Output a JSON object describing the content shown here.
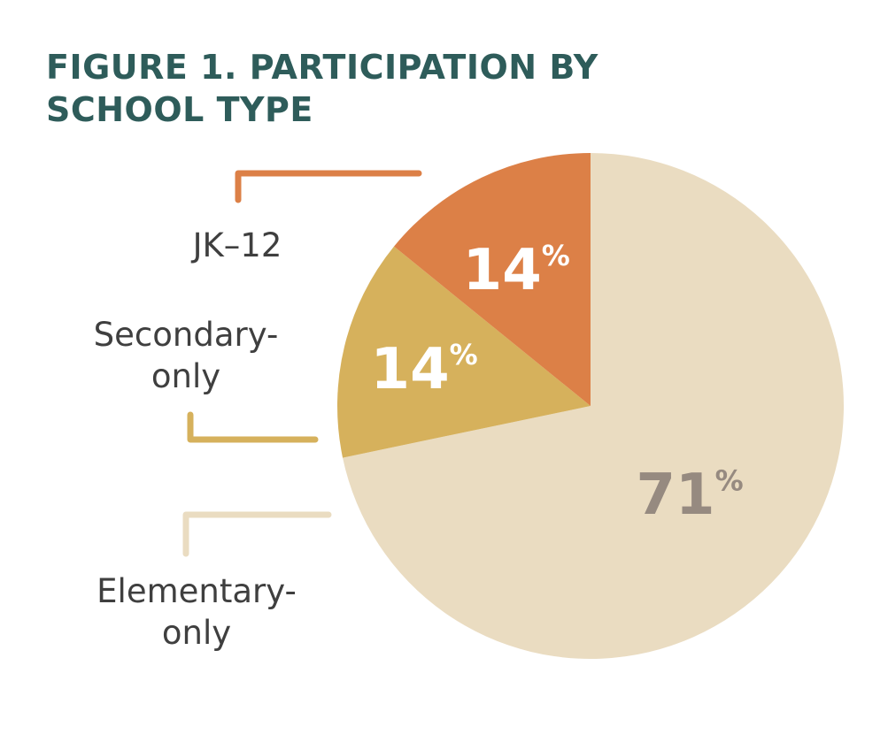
{
  "colors": {
    "title": "#2e5c5a",
    "label_text": "#3f3f3f"
  },
  "chart_data": {
    "type": "pie",
    "title": "FIGURE 1. PARTICIPATION BY SCHOOL TYPE",
    "title_lines": [
      "FIGURE 1. PARTICIPATION BY",
      "SCHOOL TYPE"
    ],
    "start_angle_deg": 0,
    "direction": "counterclockwise",
    "legend_placement": "left",
    "slices": [
      {
        "label": "Elementary-only",
        "label_lines": [
          "Elementary-",
          "only"
        ],
        "value": 71,
        "display_number": "71",
        "display_unit": "%",
        "color": "#eadcc1",
        "text_color": "#968a80"
      },
      {
        "label": "Secondary-only",
        "label_lines": [
          "Secondary-",
          "only"
        ],
        "value": 14,
        "display_number": "14",
        "display_unit": "%",
        "color": "#d6b15c",
        "text_color": "#ffffff"
      },
      {
        "label": "JK–12",
        "label_lines": [
          "JK–12"
        ],
        "value": 14,
        "display_number": "14",
        "display_unit": "%",
        "color": "#dc8047",
        "text_color": "#ffffff"
      }
    ]
  }
}
